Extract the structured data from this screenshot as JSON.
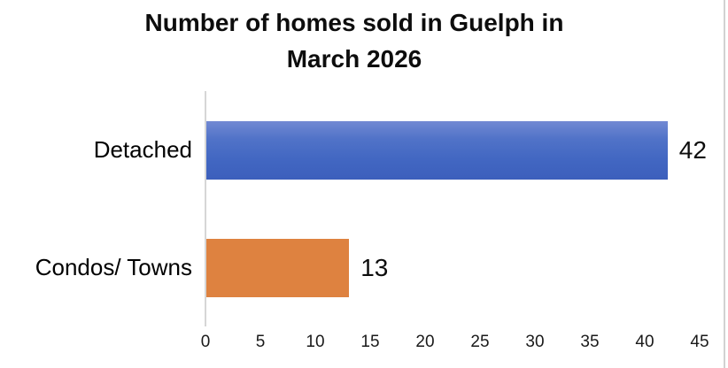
{
  "chart_data": {
    "type": "bar",
    "orientation": "horizontal",
    "title": "Number of homes sold in Guelph in March 2026",
    "title_lines": [
      "Number of homes sold in Guelph in",
      "March 2026"
    ],
    "categories": [
      "Detached",
      "Condos/ Towns"
    ],
    "values": [
      42,
      13
    ],
    "data_labels": [
      "42",
      "13"
    ],
    "xlabel": "",
    "ylabel": "",
    "xlim": [
      0,
      45
    ],
    "x_tick_step": 5,
    "x_tick_labels": [
      "0",
      "5",
      "10",
      "15",
      "20",
      "25",
      "30",
      "35",
      "40",
      "45"
    ],
    "grid": false,
    "legend_position": "none",
    "bar_colors": [
      "#4472C4",
      "#DE8240"
    ],
    "bar_gradient_detached": {
      "top": "#7289D3",
      "bottom": "#3C5FBC"
    }
  },
  "colors": {
    "background": "#FFFFFF",
    "title_text": "#0D0D0D",
    "axis_line": "#D6D6D6",
    "tick_text": "#1A1A1A",
    "chart_edge_line": "#D2D2D2"
  }
}
